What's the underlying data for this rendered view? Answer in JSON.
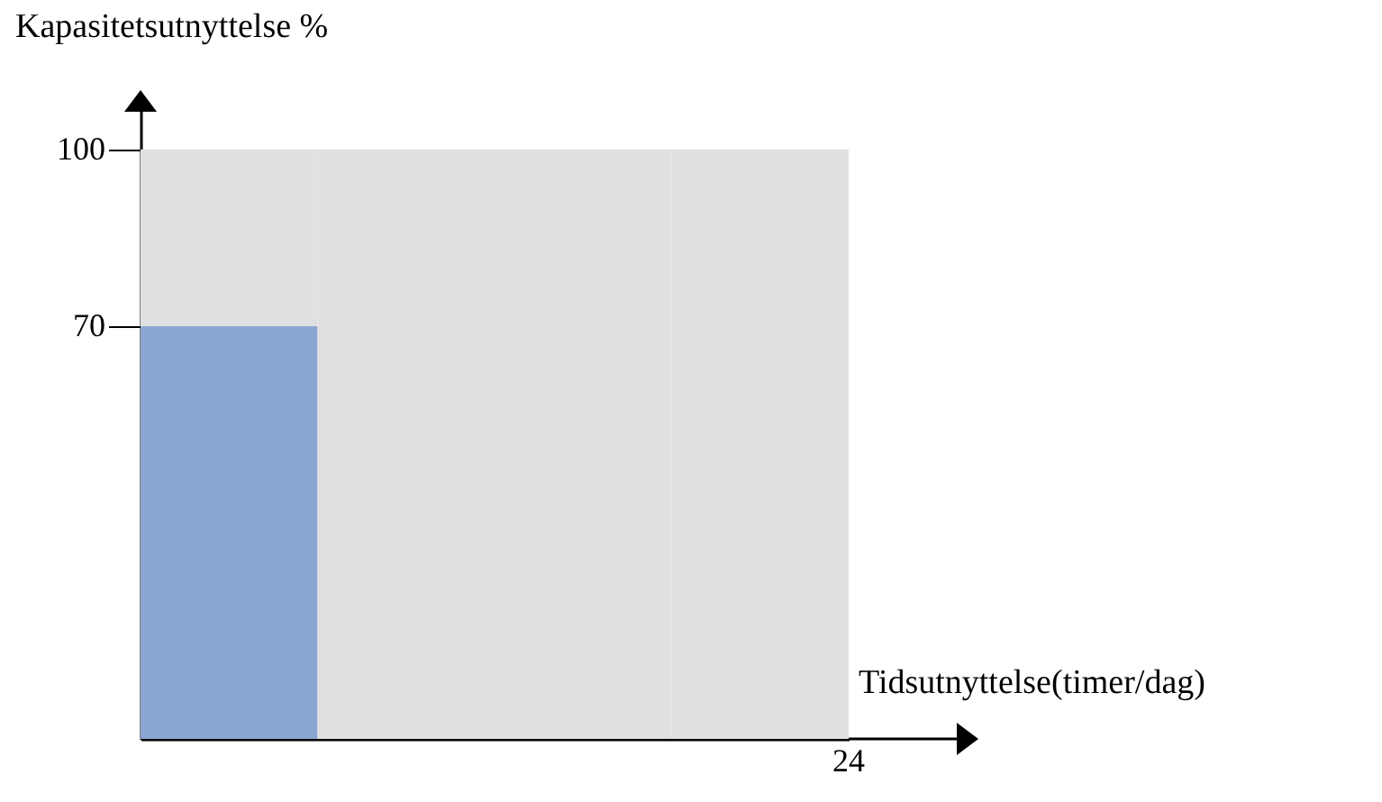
{
  "chart_data": {
    "type": "bar",
    "stacked": true,
    "xlabel": "Tidsutnyttelse(timer/dag)",
    "ylabel": "Kapasitetsutnyttelse %",
    "ylim": [
      0,
      107
    ],
    "yticks": [
      70,
      100
    ],
    "tick_labels": "y",
    "categories": [
      null,
      null,
      null,
      null
    ],
    "annotations": [
      "24"
    ],
    "series": [
      {
        "color": "#8ba7d1",
        "values": [
          70,
          null,
          null,
          null
        ]
      },
      {
        "color": "#dfe0df",
        "values": [
          30,
          100,
          100,
          100
        ]
      }
    ]
  }
}
